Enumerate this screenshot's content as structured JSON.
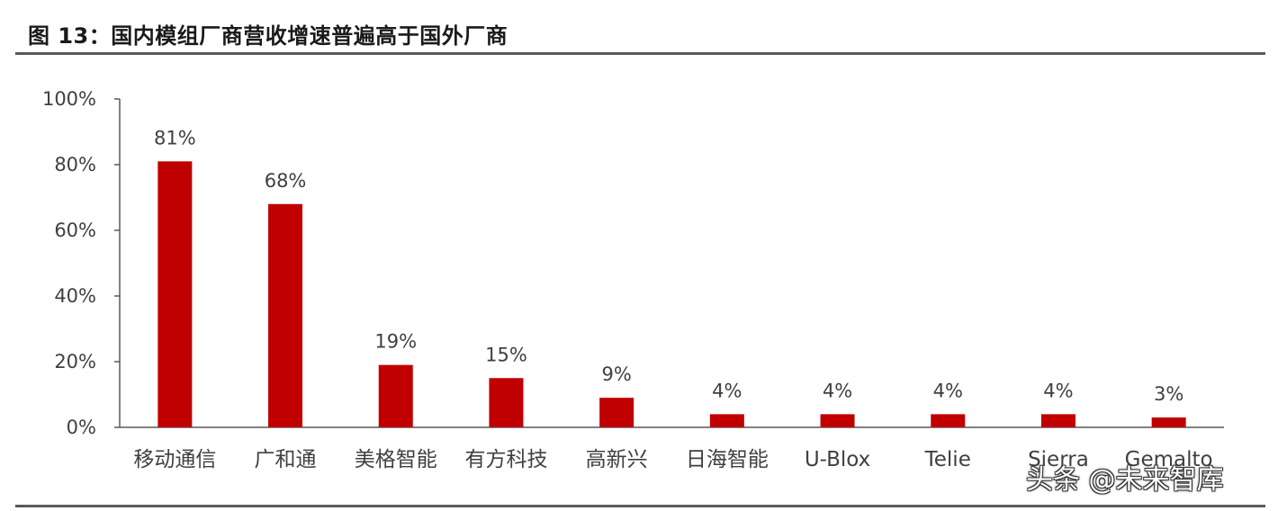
{
  "figure": {
    "title": "图 13：国内模组厂商营收增速普遍高于国外厂商"
  },
  "watermark": "头条 @未来智库",
  "colors": {
    "bar": "#C00000",
    "axis": "#595959",
    "text": "#404040"
  },
  "chart_data": {
    "type": "bar",
    "title": "",
    "xlabel": "",
    "ylabel": "",
    "categories": [
      "移动通信",
      "广和通",
      "美格智能",
      "有方科技",
      "高新兴",
      "日海智能",
      "U-Blox",
      "Telie",
      "Sierra",
      "Gemalto"
    ],
    "values": [
      81,
      68,
      19,
      15,
      9,
      4,
      4,
      4,
      4,
      3
    ],
    "data_labels": [
      "81%",
      "68%",
      "19%",
      "15%",
      "9%",
      "4%",
      "4%",
      "4%",
      "4%",
      "3%"
    ],
    "yticks": [
      "0%",
      "20%",
      "40%",
      "60%",
      "80%",
      "100%"
    ],
    "ylim": [
      0,
      100
    ],
    "grid": false,
    "legend": "none"
  }
}
